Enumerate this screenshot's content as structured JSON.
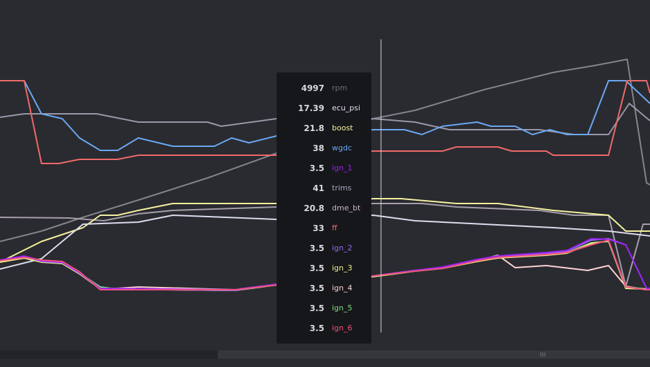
{
  "tooltip": {
    "rows": [
      {
        "value": 4997,
        "name": "rpm",
        "color": "#6e6e74"
      },
      {
        "value": 17.39,
        "name": "ecu_psi",
        "color": "#e4dcf4"
      },
      {
        "value": 21.8,
        "name": "boost",
        "color": "#f6f2a0"
      },
      {
        "value": 38,
        "name": "wgdc",
        "color": "#6aa9f5"
      },
      {
        "value": 3.5,
        "name": "ign_1",
        "color": "#9a22f0"
      },
      {
        "value": 41,
        "name": "trims",
        "color": "#a8a8bc"
      },
      {
        "value": 20.8,
        "name": "dme_bt",
        "color": "#c8b4c8"
      },
      {
        "value": 33,
        "name": "ff",
        "color": "#f06a6a"
      },
      {
        "value": 3.5,
        "name": "ign_2",
        "color": "#9b6cf0"
      },
      {
        "value": 3.5,
        "name": "ign_3",
        "color": "#f4f48a"
      },
      {
        "value": 3.5,
        "name": "ign_4",
        "color": "#ffd4d4"
      },
      {
        "value": 3.5,
        "name": "ign_5",
        "color": "#7ee07e"
      },
      {
        "value": 3.5,
        "name": "ign_6",
        "color": "#f0507c"
      }
    ]
  }
}
